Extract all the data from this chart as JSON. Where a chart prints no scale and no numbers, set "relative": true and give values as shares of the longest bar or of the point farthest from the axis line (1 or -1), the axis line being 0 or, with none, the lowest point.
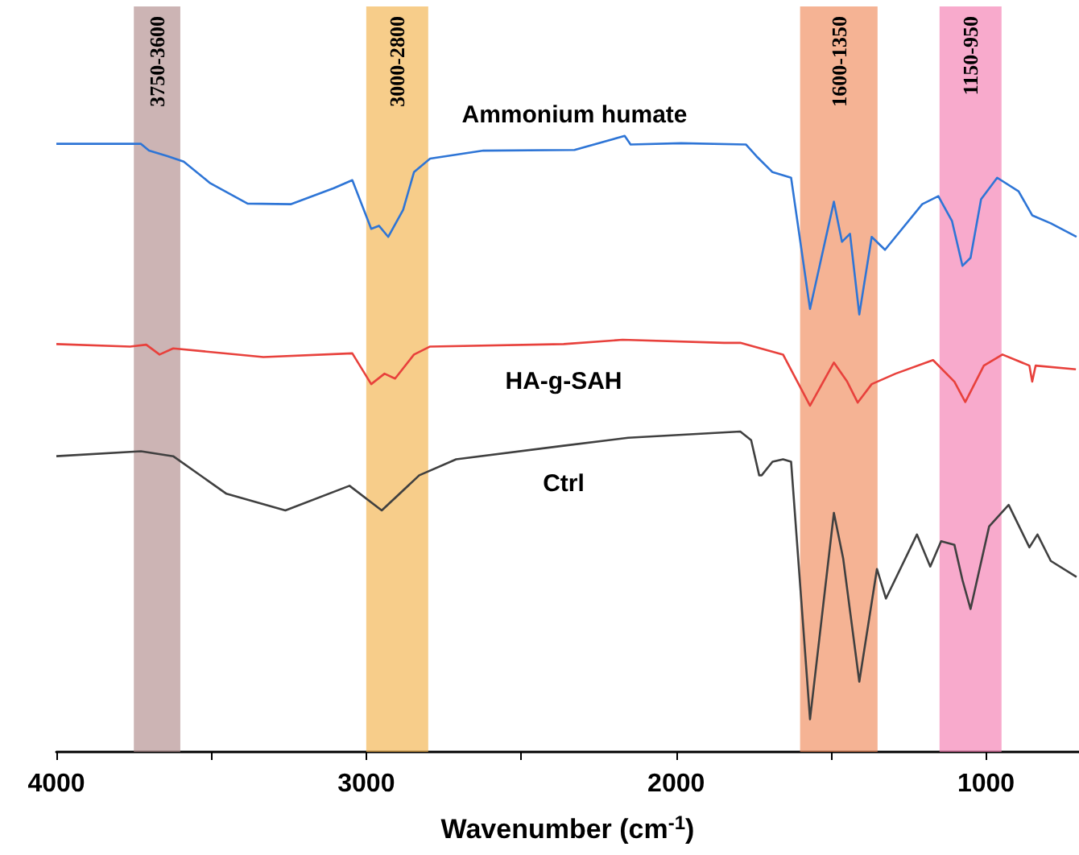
{
  "chart_data": {
    "type": "line",
    "relative": true,
    "xlabel": "Wavenumber (cm$^{-1}$)",
    "xlim": [
      4000,
      700
    ],
    "xticks": [
      4000,
      {
        "value": 3500,
        "label": null
      },
      3000,
      {
        "value": 2500,
        "label": null
      },
      2000,
      {
        "value": 1500,
        "label": null
      },
      1000
    ],
    "grid": false,
    "legend": false,
    "marker": "none",
    "line_style": "solid",
    "series": [
      {
        "name": "Ammonium humate",
        "color": "#2e75d6",
        "x": [
          4000,
          3727,
          3701,
          3641,
          3589,
          3503,
          3383,
          3244,
          3105,
          3045,
          2984,
          2959,
          2929,
          2881,
          2846,
          2794,
          2622,
          2328,
          2166,
          2147,
          1984,
          1775,
          1741,
          1689,
          1629,
          1568,
          1491,
          1465,
          1439,
          1409,
          1369,
          1326,
          1206,
          1154,
          1110,
          1076,
          1050,
          1016,
          964,
          895,
          851,
          791,
          708
        ],
        "values": [
          0.987,
          0.987,
          0.976,
          0.967,
          0.958,
          0.923,
          0.89,
          0.889,
          0.915,
          0.928,
          0.849,
          0.854,
          0.836,
          0.88,
          0.941,
          0.963,
          0.976,
          0.977,
          1,
          0.986,
          0.988,
          0.986,
          0.967,
          0.941,
          0.932,
          0.719,
          0.893,
          0.828,
          0.841,
          0.71,
          0.836,
          0.815,
          0.889,
          0.902,
          0.862,
          0.789,
          0.802,
          0.897,
          0.932,
          0.91,
          0.871,
          0.858,
          0.836
        ]
      },
      {
        "name": "HA-g-SAH",
        "color": "#e8413c",
        "x": [
          4000,
          3762,
          3710,
          3667,
          3623,
          3332,
          3045,
          2984,
          2941,
          2907,
          2846,
          2794,
          2363,
          2173,
          1845,
          1793,
          1655,
          1568,
          1491,
          1448,
          1414,
          1369,
          1292,
          1171,
          1102,
          1067,
          1007,
          947,
          860,
          851,
          840,
          710
        ],
        "values": [
          0.662,
          0.658,
          0.661,
          0.645,
          0.655,
          0.641,
          0.647,
          0.597,
          0.614,
          0.606,
          0.645,
          0.658,
          0.662,
          0.669,
          0.664,
          0.664,
          0.645,
          0.562,
          0.632,
          0.601,
          0.567,
          0.597,
          0.614,
          0.636,
          0.601,
          0.568,
          0.627,
          0.645,
          0.627,
          0.601,
          0.627,
          0.621
        ]
      },
      {
        "name": "Ctrl",
        "color": "#404040",
        "x": [
          4000,
          3727,
          3623,
          3451,
          3261,
          3054,
          2950,
          2829,
          2710,
          2363,
          2155,
          1793,
          1758,
          1732,
          1724,
          1689,
          1655,
          1629,
          1568,
          1491,
          1461,
          1409,
          1352,
          1323,
          1223,
          1180,
          1145,
          1102,
          1076,
          1050,
          990,
          927,
          860,
          834,
          791,
          708
        ],
        "values": [
          0.48,
          0.488,
          0.48,
          0.419,
          0.392,
          0.432,
          0.392,
          0.449,
          0.475,
          0.497,
          0.51,
          0.52,
          0.506,
          0.449,
          0.449,
          0.471,
          0.475,
          0.471,
          0.053,
          0.388,
          0.314,
          0.114,
          0.297,
          0.249,
          0.353,
          0.301,
          0.342,
          0.336,
          0.279,
          0.232,
          0.366,
          0.401,
          0.332,
          0.353,
          0.31,
          0.284
        ]
      }
    ],
    "bands": [
      {
        "axis": "x",
        "from": 3750,
        "to": 3600,
        "label": "3750-3600",
        "color": "#b08c8c"
      },
      {
        "axis": "x",
        "from": 3000,
        "to": 2800,
        "label": "3000-2800",
        "color": "#f2b24c"
      },
      {
        "axis": "x",
        "from": 1600,
        "to": 1350,
        "label": "1600-1350",
        "color": "#f08a5a"
      },
      {
        "axis": "x",
        "from": 1150,
        "to": 950,
        "label": "1150-950",
        "color": "#f47cb0"
      }
    ]
  }
}
